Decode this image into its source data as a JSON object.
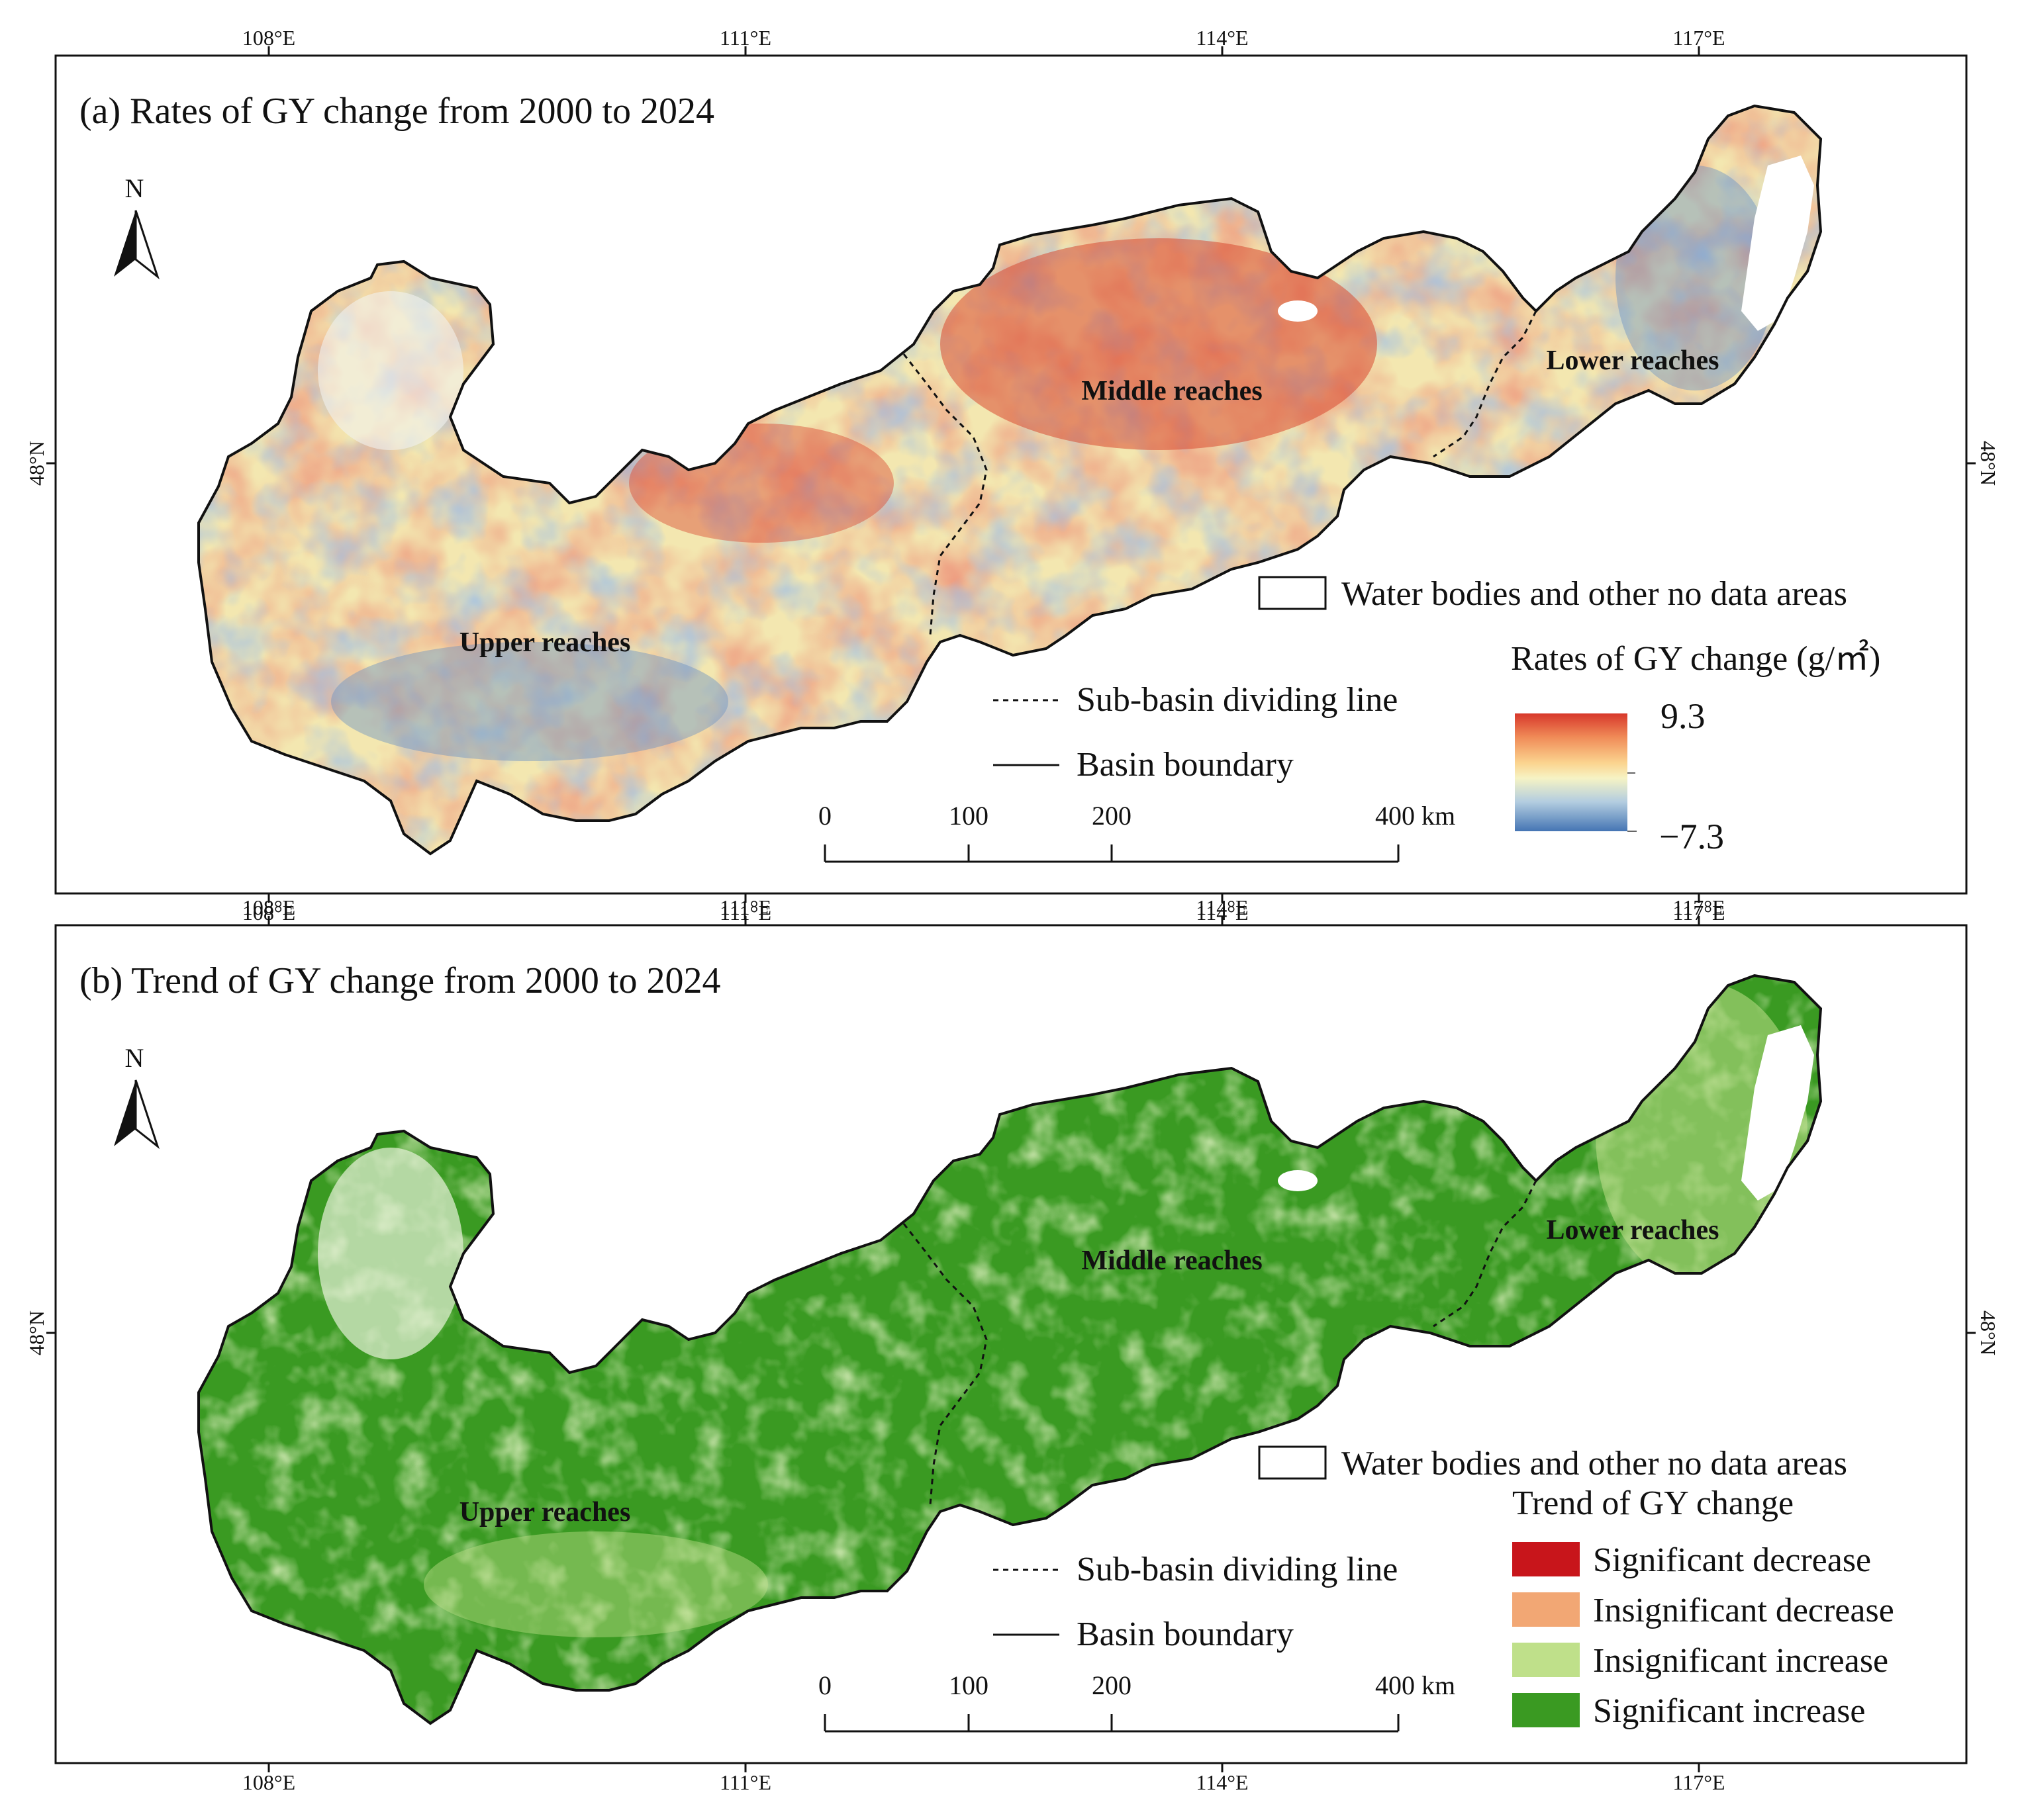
{
  "panels": [
    {
      "id": "a",
      "title": "(a) Rates of GY change from 2000 to 2024",
      "region_labels": {
        "upper": "Upper reaches",
        "middle": "Middle reaches",
        "lower": "Lower reaches"
      },
      "north_label": "N",
      "legend": {
        "water": "Water bodies and other no data areas",
        "ramp_title": "Rates of GY change (g/㎡)",
        "ramp_max": "9.3",
        "ramp_min": "−7.3",
        "ramp_colors": [
          "#d7382b",
          "#f08a57",
          "#fbd48f",
          "#f6f3c4",
          "#b3cde0",
          "#4575b4"
        ],
        "subbasin": "Sub-basin dividing line",
        "boundary": "Basin boundary"
      },
      "scalebar": {
        "ticks": [
          "0",
          "100",
          "200"
        ],
        "end": "400 km"
      }
    },
    {
      "id": "b",
      "title": "(b) Trend of GY change from 2000 to 2024",
      "region_labels": {
        "upper": "Upper reaches",
        "middle": "Middle reaches",
        "lower": "Lower reaches"
      },
      "north_label": "N",
      "legend": {
        "water": "Water bodies and other no data areas",
        "classes_title": "Trend of GY change",
        "classes": [
          {
            "label": "Significant decrease",
            "color": "#c8151b"
          },
          {
            "label": "Insignificant decrease",
            "color": "#f2a774"
          },
          {
            "label": "Insignificant increase",
            "color": "#bfe08a"
          },
          {
            "label": "Significant increase",
            "color": "#3a9a22"
          }
        ],
        "subbasin": "Sub-basin dividing line",
        "boundary": "Basin boundary"
      },
      "scalebar": {
        "ticks": [
          "0",
          "100",
          "200"
        ],
        "end": "400 km"
      }
    }
  ],
  "axes": {
    "lon_labels": [
      "108°E",
      "111°E",
      "114°E",
      "117°E"
    ],
    "lat_label": "48°N"
  },
  "colors": {
    "frame": "#111111",
    "water": "#ffffff",
    "panel_a_base": "#f3e7b0",
    "panel_a_hot": "#d94a32",
    "panel_a_cool": "#6c93c4",
    "panel_b_base": "#3a9a22",
    "panel_b_light": "#bfe08a"
  }
}
